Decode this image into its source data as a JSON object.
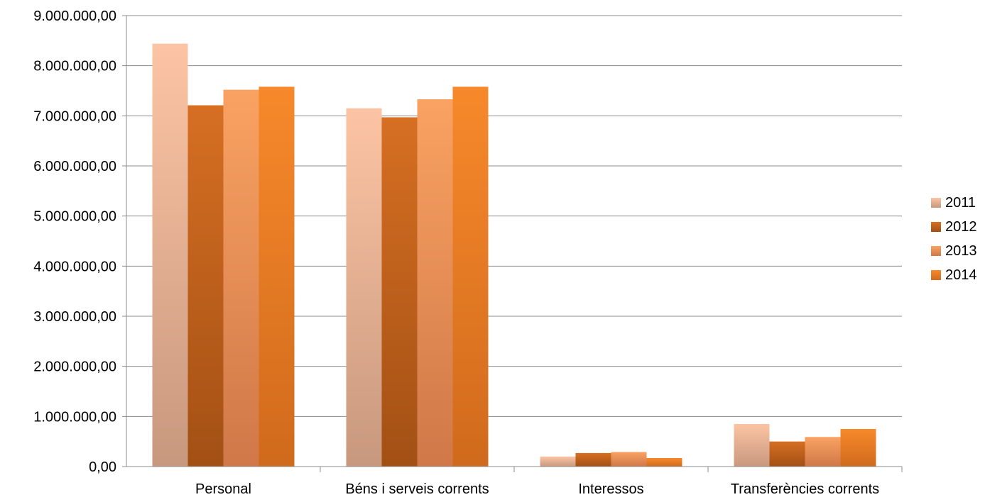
{
  "chart_data": {
    "type": "bar",
    "title": "",
    "xlabel": "",
    "ylabel": "",
    "categories": [
      "Personal",
      "Béns i serveis corrents",
      "Interessos",
      "Transferències corrents"
    ],
    "series": [
      {
        "name": "2011",
        "values": [
          8440000,
          7150000,
          200000,
          850000
        ],
        "color_top": "#FCC4A4",
        "color_bottom": "#C8987E"
      },
      {
        "name": "2012",
        "values": [
          7210000,
          6970000,
          270000,
          500000
        ],
        "color_top": "#D66F22",
        "color_bottom": "#A35015"
      },
      {
        "name": "2013",
        "values": [
          7520000,
          7330000,
          290000,
          590000
        ],
        "color_top": "#F9A262",
        "color_bottom": "#D07848"
      },
      {
        "name": "2014",
        "values": [
          7580000,
          7580000,
          170000,
          750000
        ],
        "color_top": "#F7892B",
        "color_bottom": "#D06A1C"
      }
    ],
    "ylim": [
      0,
      9000000
    ],
    "yticks": [
      0,
      1000000,
      2000000,
      3000000,
      4000000,
      5000000,
      6000000,
      7000000,
      8000000,
      9000000
    ],
    "ytick_labels": [
      "0,00",
      "1.000.000,00",
      "2.000.000,00",
      "3.000.000,00",
      "4.000.000,00",
      "5.000.000,00",
      "6.000.000,00",
      "7.000.000,00",
      "8.000.000,00",
      "9.000.000,00"
    ],
    "grid": true,
    "legend_position": "right"
  }
}
